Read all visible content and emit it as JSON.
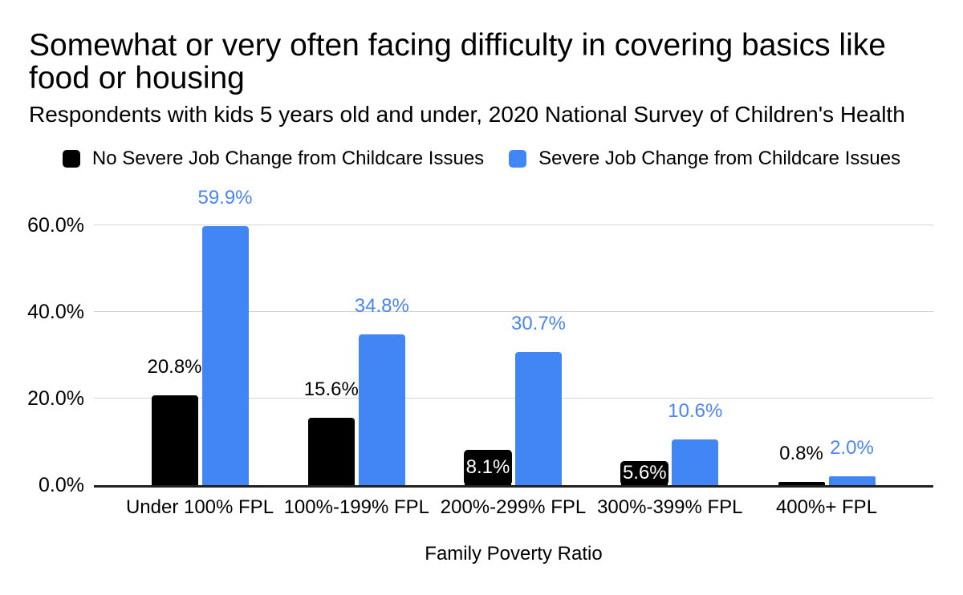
{
  "chart_data": {
    "type": "bar",
    "title": "Somewhat or very often facing difficulty in covering basics like food or housing",
    "subtitle": "Respondents with kids 5 years old and under, 2020 National Survey of Children's Health",
    "xlabel": "Family Poverty Ratio",
    "ylabel": "",
    "categories": [
      "Under 100% FPL",
      "100%-199% FPL",
      "200%-299% FPL",
      "300%-399% FPL",
      "400%+ FPL"
    ],
    "series": [
      {
        "name": "No Severe Job Change from Childcare Issues",
        "color": "#000000",
        "label_color": "#000000",
        "badge_text_color": "#ffffff",
        "values": [
          20.8,
          15.6,
          8.1,
          5.6,
          0.8
        ],
        "badge_labels": [
          false,
          false,
          true,
          true,
          false
        ]
      },
      {
        "name": "Severe Job Change from Childcare Issues",
        "color": "#4285f4",
        "label_color": "#4a85f1",
        "values": [
          59.9,
          34.8,
          30.7,
          10.6,
          2.0
        ],
        "badge_labels": [
          false,
          false,
          false,
          false,
          false
        ]
      }
    ],
    "value_label_format": "{value:.1f}%",
    "yticks": [
      0,
      20,
      40,
      60
    ],
    "ytick_labels": [
      "0.0%",
      "20.0%",
      "40.0%",
      "60.0%"
    ],
    "ylim": [
      0,
      60
    ],
    "grid": true,
    "legend_position": "top",
    "colors": {
      "background": "#ffffff",
      "gridline": "#d4d4d4",
      "axis_line": "#212121",
      "tick_label": "#000000"
    }
  }
}
